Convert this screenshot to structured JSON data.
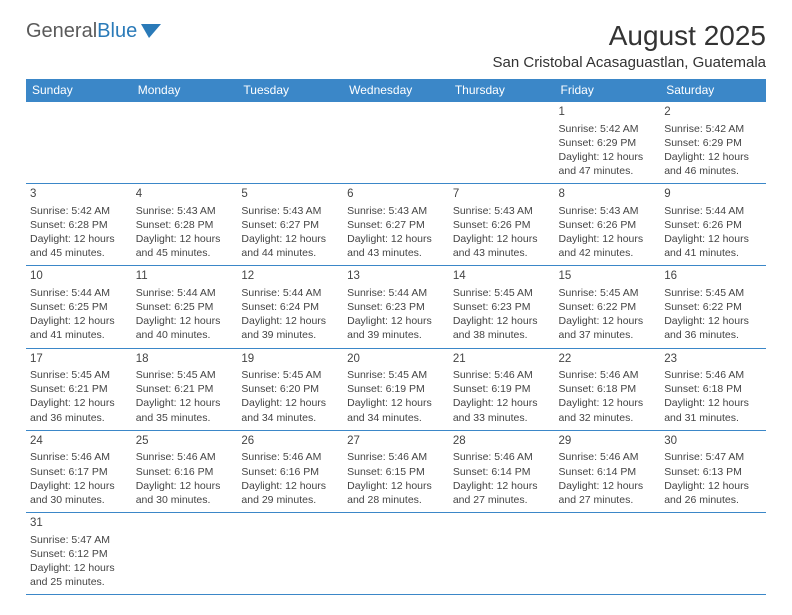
{
  "logo": {
    "text1": "General",
    "text2": "Blue"
  },
  "title": "August 2025",
  "location": "San Cristobal Acasaguastlan, Guatemala",
  "headers": [
    "Sunday",
    "Monday",
    "Tuesday",
    "Wednesday",
    "Thursday",
    "Friday",
    "Saturday"
  ],
  "colors": {
    "header_bg": "#3b87c8",
    "header_text": "#ffffff",
    "border": "#3b87c8",
    "body_text": "#444444",
    "logo_blue": "#2a7ab8"
  },
  "weeks": [
    [
      null,
      null,
      null,
      null,
      null,
      {
        "n": "1",
        "sr": "5:42 AM",
        "ss": "6:29 PM",
        "dl": "12 hours and 47 minutes."
      },
      {
        "n": "2",
        "sr": "5:42 AM",
        "ss": "6:29 PM",
        "dl": "12 hours and 46 minutes."
      }
    ],
    [
      {
        "n": "3",
        "sr": "5:42 AM",
        "ss": "6:28 PM",
        "dl": "12 hours and 45 minutes."
      },
      {
        "n": "4",
        "sr": "5:43 AM",
        "ss": "6:28 PM",
        "dl": "12 hours and 45 minutes."
      },
      {
        "n": "5",
        "sr": "5:43 AM",
        "ss": "6:27 PM",
        "dl": "12 hours and 44 minutes."
      },
      {
        "n": "6",
        "sr": "5:43 AM",
        "ss": "6:27 PM",
        "dl": "12 hours and 43 minutes."
      },
      {
        "n": "7",
        "sr": "5:43 AM",
        "ss": "6:26 PM",
        "dl": "12 hours and 43 minutes."
      },
      {
        "n": "8",
        "sr": "5:43 AM",
        "ss": "6:26 PM",
        "dl": "12 hours and 42 minutes."
      },
      {
        "n": "9",
        "sr": "5:44 AM",
        "ss": "6:26 PM",
        "dl": "12 hours and 41 minutes."
      }
    ],
    [
      {
        "n": "10",
        "sr": "5:44 AM",
        "ss": "6:25 PM",
        "dl": "12 hours and 41 minutes."
      },
      {
        "n": "11",
        "sr": "5:44 AM",
        "ss": "6:25 PM",
        "dl": "12 hours and 40 minutes."
      },
      {
        "n": "12",
        "sr": "5:44 AM",
        "ss": "6:24 PM",
        "dl": "12 hours and 39 minutes."
      },
      {
        "n": "13",
        "sr": "5:44 AM",
        "ss": "6:23 PM",
        "dl": "12 hours and 39 minutes."
      },
      {
        "n": "14",
        "sr": "5:45 AM",
        "ss": "6:23 PM",
        "dl": "12 hours and 38 minutes."
      },
      {
        "n": "15",
        "sr": "5:45 AM",
        "ss": "6:22 PM",
        "dl": "12 hours and 37 minutes."
      },
      {
        "n": "16",
        "sr": "5:45 AM",
        "ss": "6:22 PM",
        "dl": "12 hours and 36 minutes."
      }
    ],
    [
      {
        "n": "17",
        "sr": "5:45 AM",
        "ss": "6:21 PM",
        "dl": "12 hours and 36 minutes."
      },
      {
        "n": "18",
        "sr": "5:45 AM",
        "ss": "6:21 PM",
        "dl": "12 hours and 35 minutes."
      },
      {
        "n": "19",
        "sr": "5:45 AM",
        "ss": "6:20 PM",
        "dl": "12 hours and 34 minutes."
      },
      {
        "n": "20",
        "sr": "5:45 AM",
        "ss": "6:19 PM",
        "dl": "12 hours and 34 minutes."
      },
      {
        "n": "21",
        "sr": "5:46 AM",
        "ss": "6:19 PM",
        "dl": "12 hours and 33 minutes."
      },
      {
        "n": "22",
        "sr": "5:46 AM",
        "ss": "6:18 PM",
        "dl": "12 hours and 32 minutes."
      },
      {
        "n": "23",
        "sr": "5:46 AM",
        "ss": "6:18 PM",
        "dl": "12 hours and 31 minutes."
      }
    ],
    [
      {
        "n": "24",
        "sr": "5:46 AM",
        "ss": "6:17 PM",
        "dl": "12 hours and 30 minutes."
      },
      {
        "n": "25",
        "sr": "5:46 AM",
        "ss": "6:16 PM",
        "dl": "12 hours and 30 minutes."
      },
      {
        "n": "26",
        "sr": "5:46 AM",
        "ss": "6:16 PM",
        "dl": "12 hours and 29 minutes."
      },
      {
        "n": "27",
        "sr": "5:46 AM",
        "ss": "6:15 PM",
        "dl": "12 hours and 28 minutes."
      },
      {
        "n": "28",
        "sr": "5:46 AM",
        "ss": "6:14 PM",
        "dl": "12 hours and 27 minutes."
      },
      {
        "n": "29",
        "sr": "5:46 AM",
        "ss": "6:14 PM",
        "dl": "12 hours and 27 minutes."
      },
      {
        "n": "30",
        "sr": "5:47 AM",
        "ss": "6:13 PM",
        "dl": "12 hours and 26 minutes."
      }
    ],
    [
      {
        "n": "31",
        "sr": "5:47 AM",
        "ss": "6:12 PM",
        "dl": "12 hours and 25 minutes."
      },
      null,
      null,
      null,
      null,
      null,
      null
    ]
  ],
  "labels": {
    "sunrise": "Sunrise: ",
    "sunset": "Sunset: ",
    "daylight": "Daylight: "
  }
}
